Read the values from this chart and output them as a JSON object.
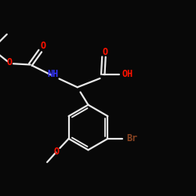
{
  "background_color": "#080808",
  "bond_color": "#e8e8e8",
  "atom_colors": {
    "O": "#ff1100",
    "N": "#3333ff",
    "Br": "#884422",
    "H": "#e8e8e8",
    "C": "#e8e8e8"
  },
  "figsize": [
    2.5,
    2.5
  ],
  "dpi": 100
}
